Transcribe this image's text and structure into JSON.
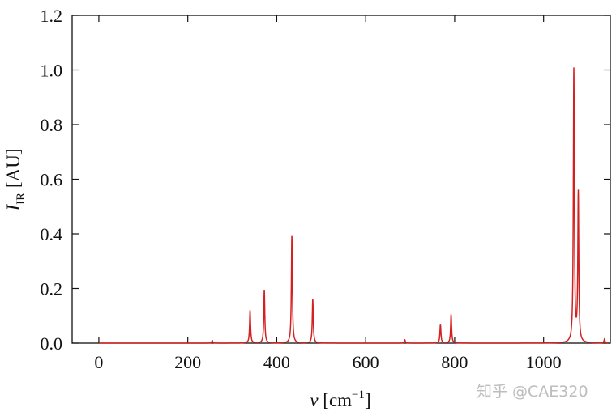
{
  "chart_data": {
    "type": "line",
    "title": "",
    "xlabel": {
      "main": "v",
      "open": " [cm",
      "sup": "−1",
      "close": "]"
    },
    "ylabel": {
      "main": "I",
      "sub": "IR",
      "rest": " [AU]"
    },
    "xlim": [
      -60,
      1150
    ],
    "ylim": [
      0,
      1.2
    ],
    "xticks": [
      0,
      200,
      400,
      600,
      800,
      1000
    ],
    "xtick_labels": [
      "0",
      "200",
      "400",
      "600",
      "800",
      "1000"
    ],
    "yticks": [
      0.0,
      0.2,
      0.4,
      0.6,
      0.8,
      1.0,
      1.2
    ],
    "ytick_labels": [
      "0.0",
      "0.2",
      "0.4",
      "0.6",
      "0.8",
      "1.0",
      "1.2"
    ],
    "grid": false,
    "line_color": "#d42020",
    "series": [
      {
        "name": "",
        "peaks": [
          {
            "x": 255,
            "y": 0.01
          },
          {
            "x": 340,
            "y": 0.12
          },
          {
            "x": 372,
            "y": 0.195
          },
          {
            "x": 434,
            "y": 0.395
          },
          {
            "x": 481,
            "y": 0.16
          },
          {
            "x": 688,
            "y": 0.012
          },
          {
            "x": 768,
            "y": 0.07
          },
          {
            "x": 792,
            "y": 0.105
          },
          {
            "x": 1068,
            "y": 1.0
          },
          {
            "x": 1078,
            "y": 0.545
          },
          {
            "x": 1137,
            "y": 0.015
          }
        ]
      }
    ]
  },
  "watermark": "知乎 @CAE320"
}
